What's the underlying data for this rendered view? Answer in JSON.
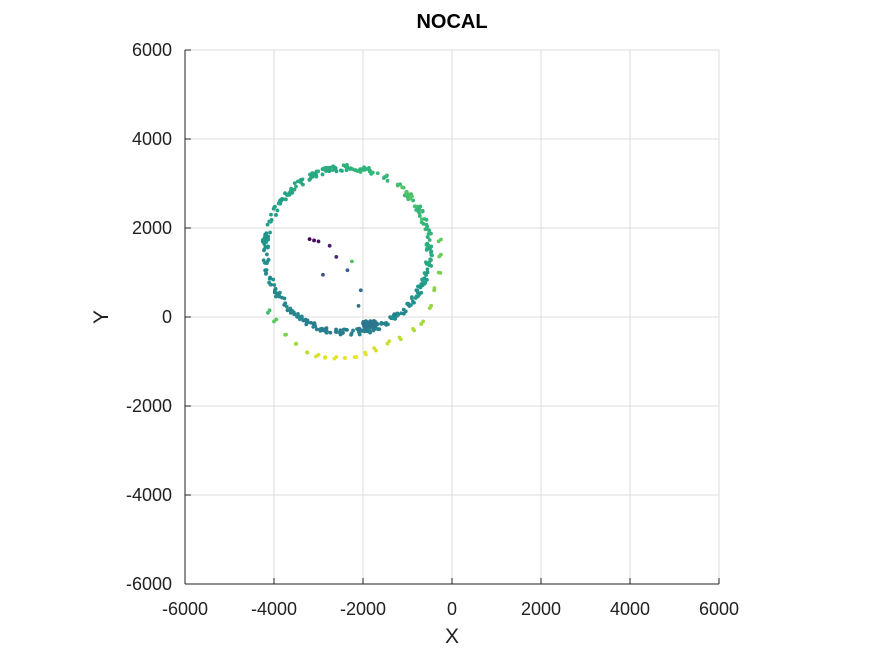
{
  "chart_data": {
    "type": "scatter",
    "title": "NOCAL",
    "xlabel": "X",
    "ylabel": "Y",
    "xlim": [
      -6000,
      6000
    ],
    "ylim": [
      -6000,
      6000
    ],
    "xticks": [
      "-6000",
      "-4000",
      "-2000",
      "0",
      "2000",
      "4000",
      "6000"
    ],
    "yticks": [
      "6000",
      "4000",
      "2000",
      "0",
      "-2000",
      "-4000",
      "-6000"
    ],
    "grid": true,
    "colormap": "viridis",
    "ring": {
      "center": [
        -2350,
        1500
      ],
      "radius": 1850,
      "point_count": 380,
      "jitter": 70
    },
    "outer_arc": {
      "points": [
        [
          -4100,
          150
        ],
        [
          -4000,
          -100
        ],
        [
          -3750,
          -400
        ],
        [
          -3500,
          -600
        ],
        [
          -3250,
          -800
        ],
        [
          -3000,
          -850
        ],
        [
          -2850,
          -900
        ],
        [
          -2600,
          -900
        ],
        [
          -2400,
          -920
        ],
        [
          -2150,
          -900
        ],
        [
          -1950,
          -800
        ],
        [
          -1750,
          -700
        ],
        [
          -1450,
          -600
        ],
        [
          -1150,
          -500
        ],
        [
          -850,
          -300
        ],
        [
          -650,
          -100
        ],
        [
          -500,
          200
        ],
        [
          -400,
          600
        ],
        [
          -300,
          1000
        ],
        [
          -250,
          1400
        ],
        [
          -300,
          1700
        ]
      ],
      "values": [
        0.7,
        0.74,
        0.8,
        0.86,
        0.9,
        0.94,
        0.95,
        0.96,
        0.97,
        0.97,
        0.96,
        0.94,
        0.92,
        0.9,
        0.88,
        0.86,
        0.84,
        0.82,
        0.8,
        0.78,
        0.76
      ]
    },
    "interior_points": {
      "points": [
        [
          -3200,
          1750
        ],
        [
          -3100,
          1720
        ],
        [
          -3000,
          1700
        ],
        [
          -2750,
          1600
        ],
        [
          -2600,
          1350
        ],
        [
          -2350,
          1050
        ],
        [
          -2250,
          1250
        ],
        [
          -2900,
          950
        ],
        [
          -2050,
          600
        ],
        [
          -2100,
          250
        ]
      ],
      "values": [
        0.0,
        0.02,
        0.04,
        0.08,
        0.12,
        0.3,
        0.72,
        0.25,
        0.35,
        0.38
      ]
    },
    "ring_color_stops": [
      {
        "angle": -90,
        "value": 0.42
      },
      {
        "angle": -45,
        "value": 0.48
      },
      {
        "angle": 0,
        "value": 0.62
      },
      {
        "angle": 45,
        "value": 0.72
      },
      {
        "angle": 90,
        "value": 0.62
      },
      {
        "angle": 135,
        "value": 0.6
      },
      {
        "angle": 180,
        "value": 0.5
      },
      {
        "angle": 225,
        "value": 0.46
      },
      {
        "angle": 270,
        "value": 0.42
      }
    ]
  }
}
